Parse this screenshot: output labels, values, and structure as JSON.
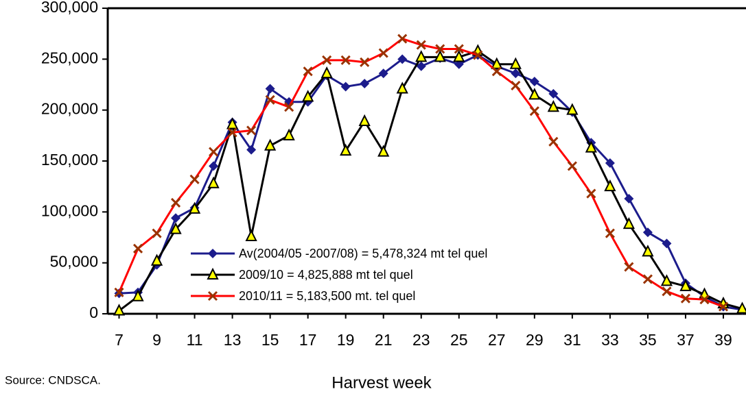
{
  "chart_data": {
    "type": "line",
    "x_label": "Harvest week",
    "source": "Source: CNDSCA.",
    "x": [
      7,
      8,
      9,
      10,
      11,
      12,
      13,
      14,
      15,
      16,
      17,
      18,
      19,
      20,
      21,
      22,
      23,
      24,
      25,
      26,
      27,
      28,
      29,
      30,
      31,
      32,
      33,
      34,
      35,
      36,
      37,
      38,
      39,
      40
    ],
    "xlim": [
      6.4,
      40.2
    ],
    "xticks": [
      7,
      9,
      11,
      13,
      15,
      17,
      19,
      21,
      23,
      25,
      27,
      29,
      31,
      33,
      35,
      37,
      39
    ],
    "ylim": [
      0,
      300000
    ],
    "yticks": [
      0,
      {
        "value": 50000,
        "label": "50,000"
      },
      {
        "value": 100000,
        "label": "100,000"
      },
      {
        "value": 150000,
        "label": "150,000"
      },
      {
        "value": 200000,
        "label": "200,000"
      },
      {
        "value": 250000,
        "label": "250,000"
      },
      {
        "value": 300000,
        "label": "300,000"
      }
    ],
    "grid": false,
    "legend": "lower center",
    "series": [
      {
        "name": "Av(2004/05 -2007/08) = 5,478,324 mt tel quel",
        "color": "#1c1c8c",
        "marker": "diamond",
        "marker_color": "#1c1c8c",
        "values": [
          20000,
          21000,
          48000,
          94000,
          104000,
          145000,
          188000,
          161000,
          221000,
          208000,
          208000,
          234000,
          223000,
          226000,
          236000,
          250000,
          243000,
          251000,
          245000,
          254000,
          243000,
          236000,
          228000,
          216000,
          198000,
          168000,
          148000,
          113000,
          80000,
          69000,
          30000,
          17000,
          7000,
          4000
        ]
      },
      {
        "name": "2009/10 = 4,825,888 mt tel quel",
        "color": "#000000",
        "marker": "triangle",
        "marker_color": "#ffff00",
        "values": [
          3000,
          17000,
          52000,
          83000,
          103000,
          128000,
          186000,
          76000,
          165000,
          175000,
          213000,
          236000,
          160000,
          189000,
          159000,
          221000,
          252000,
          252000,
          252000,
          258000,
          245000,
          245000,
          215000,
          203000,
          200000,
          163000,
          125000,
          88000,
          61000,
          32000,
          27000,
          19000,
          10000,
          5000
        ]
      },
      {
        "name": "2010/11 = 5,183,500 mt. tel quel",
        "color": "#ff0000",
        "marker": "x",
        "marker_color": "#993300",
        "values": [
          21000,
          64000,
          79000,
          109000,
          132000,
          159000,
          178000,
          180000,
          210000,
          203000,
          238000,
          249000,
          249000,
          247000,
          256000,
          270000,
          264000,
          260000,
          260000,
          254000,
          238000,
          224000,
          199000,
          169000,
          145000,
          118000,
          79000,
          46000,
          34000,
          22000,
          15000,
          14000,
          7000,
          null
        ]
      }
    ]
  }
}
